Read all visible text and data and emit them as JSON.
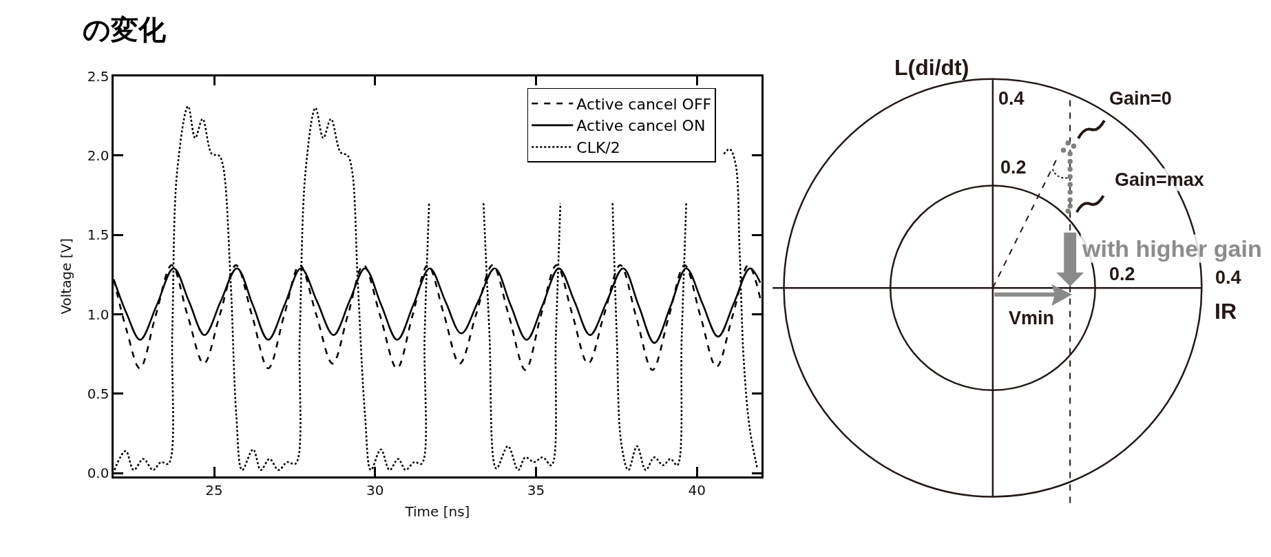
{
  "chart_data": [
    {
      "type": "line",
      "title": "の変化",
      "xlabel": "Time [ns]",
      "ylabel": "Voltage [V]",
      "xlim": [
        21.88,
        42.0
      ],
      "ylim": [
        -0.02,
        2.5
      ],
      "xticks": [
        25,
        30,
        35,
        40
      ],
      "yticks": [
        {
          "value": 0,
          "label": "0.0"
        },
        {
          "value": 0.5,
          "label": "0.5"
        },
        {
          "value": 1,
          "label": "1.0"
        },
        {
          "value": 1.5,
          "label": "1.5"
        },
        {
          "value": 2,
          "label": "2.0"
        },
        {
          "value": 2.5,
          "label": "2.5"
        }
      ],
      "legend": "top right",
      "series": [
        {
          "name": "Active cancel OFF",
          "color": "#000000",
          "line_style": "dashed",
          "x": [
            21.88,
            22.28,
            22.69,
            23.18,
            23.68,
            24.18,
            24.68,
            25.18,
            25.68,
            26.18,
            26.68,
            27.17,
            27.66,
            28.17,
            28.68,
            29.16,
            29.64,
            30.16,
            30.68,
            31.16,
            31.64,
            32.14,
            32.63,
            33.14,
            33.65,
            34.16,
            34.67,
            35.15,
            35.64,
            36.13,
            36.62,
            37.12,
            37.62,
            38.12,
            38.62,
            39.12,
            39.62,
            40.11,
            40.61,
            41.11,
            41.6,
            41.97
          ],
          "values": [
            1.22,
            0.9,
            0.66,
            0.99,
            1.31,
            0.99,
            0.69,
            1.0,
            1.31,
            0.99,
            0.66,
            0.99,
            1.31,
            1.0,
            0.69,
            1.0,
            1.31,
            0.99,
            0.66,
            0.99,
            1.31,
            1.0,
            0.69,
            1.0,
            1.31,
            0.99,
            0.65,
            0.99,
            1.31,
            1.0,
            0.69,
            1.0,
            1.31,
            0.98,
            0.65,
            0.98,
            1.31,
            0.99,
            0.67,
            0.99,
            1.31,
            1.1
          ]
        },
        {
          "name": "Active cancel ON",
          "color": "#000000",
          "line_style": "solid",
          "x": [
            21.88,
            22.29,
            22.7,
            23.22,
            23.74,
            24.22,
            24.7,
            25.2,
            25.71,
            26.2,
            26.68,
            27.19,
            27.7,
            28.2,
            28.71,
            29.2,
            29.69,
            30.19,
            30.69,
            31.19,
            31.7,
            32.19,
            32.68,
            33.2,
            33.72,
            34.21,
            34.71,
            35.21,
            35.71,
            36.2,
            36.68,
            37.2,
            37.71,
            38.2,
            38.68,
            39.18,
            39.67,
            40.17,
            40.66,
            41.15,
            41.65,
            41.97
          ],
          "values": [
            1.22,
            1.0,
            0.84,
            1.06,
            1.29,
            1.08,
            0.87,
            1.08,
            1.29,
            1.06,
            0.84,
            1.06,
            1.29,
            1.08,
            0.87,
            1.08,
            1.29,
            1.06,
            0.84,
            1.06,
            1.29,
            1.08,
            0.88,
            1.08,
            1.29,
            1.06,
            0.84,
            1.06,
            1.29,
            1.08,
            0.87,
            1.08,
            1.29,
            1.05,
            0.82,
            1.05,
            1.29,
            1.07,
            0.86,
            1.07,
            1.29,
            1.2
          ]
        },
        {
          "name": "CLK/2",
          "color": "#000000",
          "line_style": "dotted",
          "x": [
            21.9,
            22.25,
            22.5,
            22.8,
            23.1,
            23.35,
            23.58,
            23.7,
            23.85,
            24.19,
            24.41,
            24.64,
            24.93,
            25.15,
            25.28,
            25.51,
            25.69,
            25.87,
            26.21,
            26.45,
            26.72,
            27.0,
            27.27,
            27.53,
            27.66,
            27.84,
            28.15,
            28.39,
            28.63,
            28.93,
            29.15,
            29.29,
            29.46,
            29.69,
            29.87,
            30.18,
            30.45,
            30.72,
            30.95,
            31.22,
            31.45,
            31.54,
            31.68,
            32.5,
            33.37,
            33.55,
            33.77,
            34.13,
            34.45,
            34.67,
            34.94,
            35.21,
            35.48,
            35.62,
            35.76,
            36.5,
            37.38,
            37.51,
            37.65,
            37.87,
            38.14,
            38.41,
            38.68,
            38.95,
            39.18,
            39.39,
            39.53,
            39.67,
            40.3,
            40.84,
            41.02,
            41.2,
            41.33,
            41.46,
            41.65,
            41.88
          ],
          "values": [
            0.02,
            0.14,
            0.02,
            0.09,
            0.02,
            0.07,
            0.06,
            0.9,
            1.9,
            2.31,
            2.11,
            2.23,
            2.01,
            2.0,
            1.93,
            1.22,
            0.36,
            0.02,
            0.15,
            0.02,
            0.09,
            0.02,
            0.07,
            0.06,
            0.87,
            1.9,
            2.3,
            2.11,
            2.23,
            2.02,
            2.0,
            1.9,
            1.22,
            0.36,
            0.02,
            0.15,
            0.02,
            0.09,
            0.02,
            0.07,
            0.06,
            0.87,
            1.7,
            null,
            1.7,
            0.9,
            0.03,
            0.17,
            0.02,
            0.1,
            0.07,
            0.1,
            0.05,
            0.87,
            1.7,
            null,
            1.7,
            0.87,
            0.19,
            0.02,
            0.17,
            0.02,
            0.1,
            0.05,
            0.09,
            0.05,
            0.87,
            1.7,
            null,
            2.01,
            2.04,
            1.95,
            1.39,
            0.7,
            0.27,
            0.03
          ]
        }
      ]
    },
    {
      "type": "other",
      "xlabel": "IR",
      "ylabel": "L(di/dt)",
      "annotations": [
        "0.4",
        "0.2",
        "Gain=0",
        "Gain=max",
        "with higher gain",
        "0.2",
        "0.4",
        "Vmin"
      ]
    }
  ]
}
